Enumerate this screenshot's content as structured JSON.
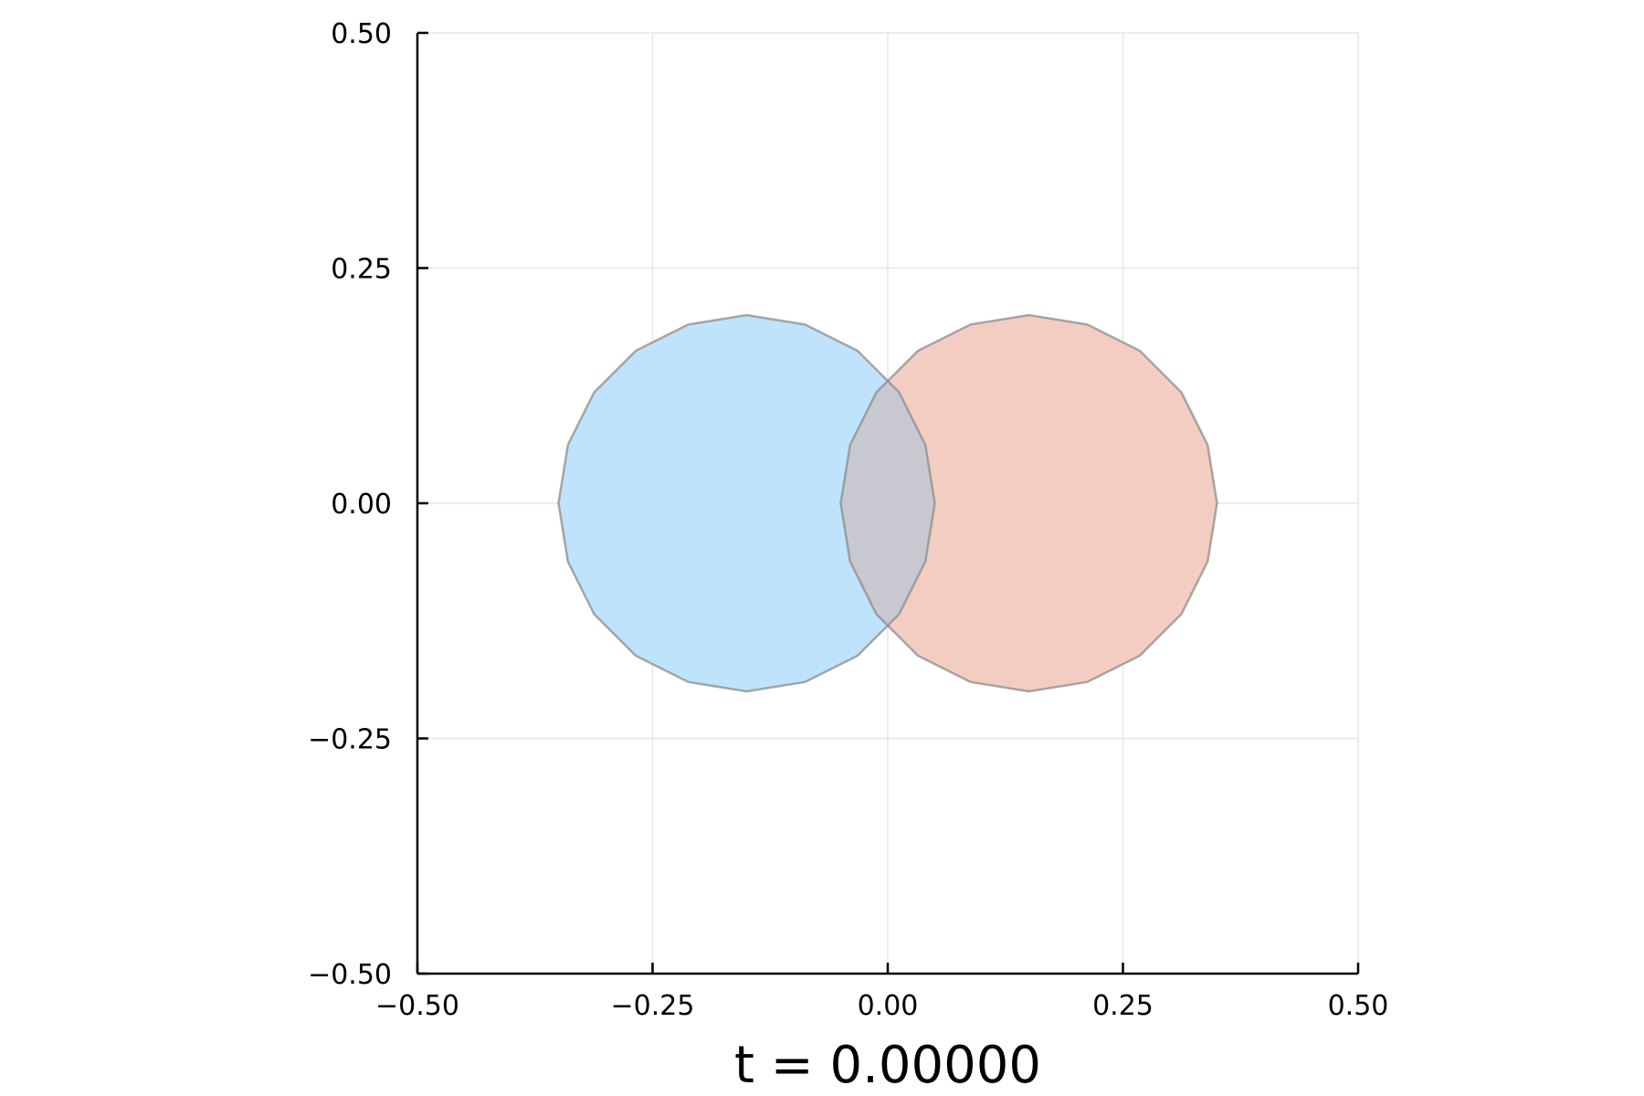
{
  "chart_data": {
    "type": "area",
    "title": "",
    "xlabel": "t = 0.00000",
    "ylabel": "",
    "xlim": [
      -0.5,
      0.5
    ],
    "ylim": [
      -0.5,
      0.5
    ],
    "xticks": [
      -0.5,
      -0.25,
      0.0,
      0.25,
      0.5
    ],
    "xtick_labels": [
      "−0.50",
      "−0.25",
      "0.00",
      "0.25",
      "0.50"
    ],
    "yticks": [
      -0.5,
      -0.25,
      0.0,
      0.25,
      0.5
    ],
    "ytick_labels": [
      "−0.50",
      "−0.25",
      "0.00",
      "0.25",
      "0.50"
    ],
    "grid": true,
    "legend": "none",
    "colors": {
      "axis": "#000000",
      "grid": "#e6e6e6",
      "outline": "#8c8c8c"
    },
    "series": [
      {
        "shape": "polygon",
        "fill": "#bfe3fa",
        "points": [
          [
            -0.35,
            0.0
          ],
          [
            -0.34,
            0.062
          ],
          [
            -0.312,
            0.118
          ],
          [
            -0.268,
            0.162
          ],
          [
            -0.212,
            0.19
          ],
          [
            -0.15,
            0.2
          ],
          [
            -0.088,
            0.19
          ],
          [
            -0.032,
            0.162
          ],
          [
            0.012,
            0.118
          ],
          [
            0.04,
            0.062
          ],
          [
            0.05,
            0.0
          ],
          [
            0.04,
            -0.062
          ],
          [
            0.012,
            -0.118
          ],
          [
            -0.032,
            -0.162
          ],
          [
            -0.088,
            -0.19
          ],
          [
            -0.15,
            -0.2
          ],
          [
            -0.212,
            -0.19
          ],
          [
            -0.268,
            -0.162
          ],
          [
            -0.312,
            -0.118
          ],
          [
            -0.34,
            -0.062
          ]
        ]
      },
      {
        "shape": "polygon",
        "fill": "#f4cdc2",
        "points": [
          [
            -0.05,
            0.0
          ],
          [
            -0.04,
            0.062
          ],
          [
            -0.012,
            0.118
          ],
          [
            0.032,
            0.162
          ],
          [
            0.088,
            0.19
          ],
          [
            0.15,
            0.2
          ],
          [
            0.212,
            0.19
          ],
          [
            0.268,
            0.162
          ],
          [
            0.312,
            0.118
          ],
          [
            0.34,
            0.062
          ],
          [
            0.35,
            0.0
          ],
          [
            0.34,
            -0.062
          ],
          [
            0.312,
            -0.118
          ],
          [
            0.268,
            -0.162
          ],
          [
            0.212,
            -0.19
          ],
          [
            0.15,
            -0.2
          ],
          [
            0.088,
            -0.19
          ],
          [
            0.032,
            -0.162
          ],
          [
            -0.012,
            -0.118
          ],
          [
            -0.04,
            -0.062
          ]
        ]
      }
    ]
  }
}
